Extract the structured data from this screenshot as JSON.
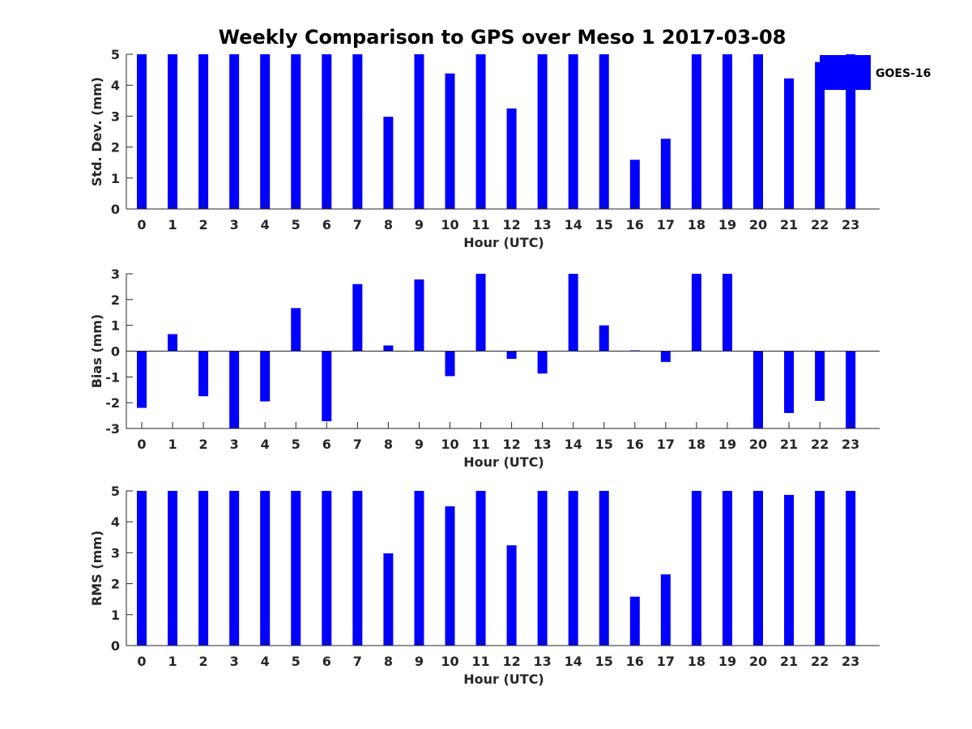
{
  "title": "Weekly Comparison to GPS over Meso 1 2017-03-08",
  "colors": {
    "bar": "#0000ff",
    "axis": "#262626"
  },
  "legend": {
    "label": "GOES-16",
    "placement": "top-right"
  },
  "chart_data": [
    {
      "type": "bar",
      "name": "std-dev",
      "xlabel": "Hour (UTC)",
      "ylabel": "Std. Dev. (mm)",
      "ylim": [
        0,
        5
      ],
      "yticks": [
        0,
        1,
        2,
        3,
        4,
        5
      ],
      "categories": [
        "0",
        "1",
        "2",
        "3",
        "4",
        "5",
        "6",
        "7",
        "8",
        "9",
        "10",
        "11",
        "12",
        "13",
        "14",
        "15",
        "16",
        "17",
        "18",
        "19",
        "20",
        "21",
        "22",
        "23"
      ],
      "series": [
        {
          "name": "GOES-16",
          "values": [
            5,
            5,
            5,
            5,
            5,
            5,
            5,
            5,
            2.98,
            5,
            4.38,
            5,
            3.25,
            5,
            5,
            5,
            1.59,
            2.27,
            5,
            5,
            5,
            4.22,
            4.75,
            5
          ]
        }
      ]
    },
    {
      "type": "bar",
      "name": "bias",
      "xlabel": "Hour (UTC)",
      "ylabel": "Bias (mm)",
      "ylim": [
        -3,
        3
      ],
      "yticks": [
        -3,
        -2,
        -1,
        0,
        1,
        2,
        3
      ],
      "categories": [
        "0",
        "1",
        "2",
        "3",
        "4",
        "5",
        "6",
        "7",
        "8",
        "9",
        "10",
        "11",
        "12",
        "13",
        "14",
        "15",
        "16",
        "17",
        "18",
        "19",
        "20",
        "21",
        "22",
        "23"
      ],
      "series": [
        {
          "name": "GOES-16",
          "values": [
            -2.2,
            0.66,
            -1.75,
            -3,
            -1.95,
            1.67,
            -2.72,
            2.6,
            0.22,
            2.78,
            -0.97,
            3,
            -0.3,
            -0.87,
            3,
            1.0,
            0.03,
            -0.42,
            3,
            3,
            -3,
            -2.4,
            -1.93,
            -3
          ]
        }
      ]
    },
    {
      "type": "bar",
      "name": "rms",
      "xlabel": "Hour (UTC)",
      "ylabel": "RMS (mm)",
      "ylim": [
        0,
        5
      ],
      "yticks": [
        0,
        1,
        2,
        3,
        4,
        5
      ],
      "categories": [
        "0",
        "1",
        "2",
        "3",
        "4",
        "5",
        "6",
        "7",
        "8",
        "9",
        "10",
        "11",
        "12",
        "13",
        "14",
        "15",
        "16",
        "17",
        "18",
        "19",
        "20",
        "21",
        "22",
        "23"
      ],
      "series": [
        {
          "name": "GOES-16",
          "values": [
            5,
            5,
            5,
            5,
            5,
            5,
            5,
            5,
            2.98,
            5,
            4.5,
            5,
            3.24,
            5,
            5,
            5,
            1.58,
            2.3,
            5,
            5,
            5,
            4.87,
            5,
            5
          ]
        }
      ]
    }
  ]
}
